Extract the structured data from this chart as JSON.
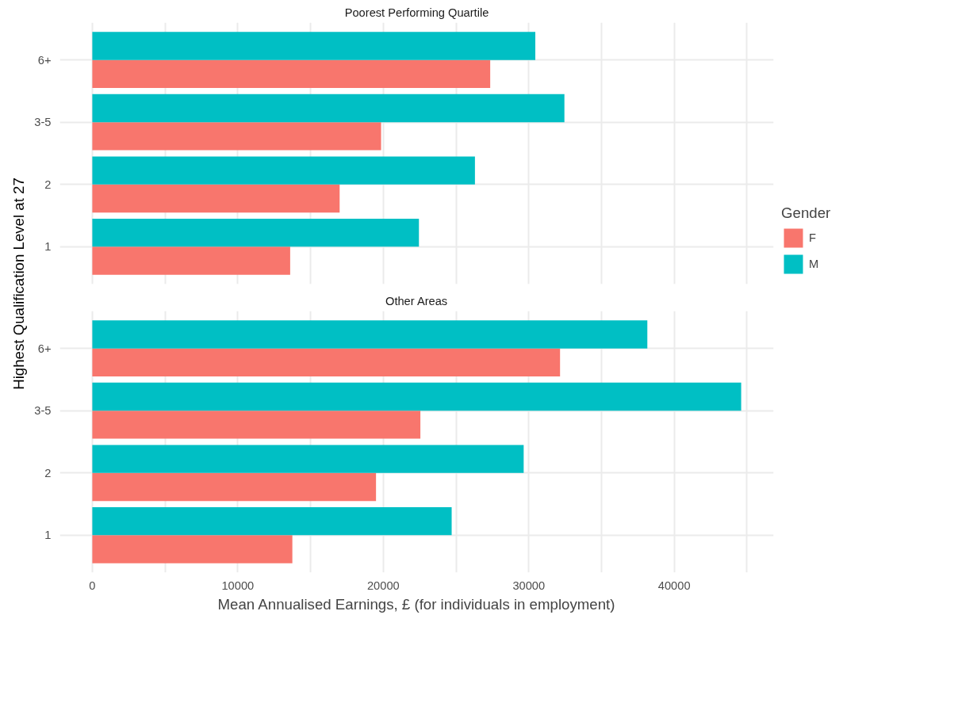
{
  "chart_data": [
    {
      "type": "bar",
      "orientation": "horizontal",
      "title": "Poorest Performing Quartile",
      "ylabel": "Highest Qualification Level at 27",
      "legend_title": "Gender",
      "legend": "right",
      "grid": true,
      "tick_labels": "y",
      "categories": [
        "6+",
        "3-5",
        "2",
        "1"
      ],
      "xlim": [
        -2230,
        46830
      ],
      "xticks": [
        0,
        {
          "value": 5000,
          "label": null
        },
        10000,
        {
          "value": 15000,
          "label": null
        },
        20000,
        {
          "value": 25000,
          "label": null
        },
        30000,
        {
          "value": 35000,
          "label": null
        },
        40000,
        {
          "value": 45000,
          "label": null
        }
      ],
      "series": [
        {
          "name": "F",
          "color": "#f8766d",
          "values": [
            27350,
            19850,
            17000,
            13600
          ]
        },
        {
          "name": "M",
          "color": "#00bfc4",
          "values": [
            30450,
            32450,
            26300,
            22450
          ]
        }
      ]
    },
    {
      "type": "bar",
      "orientation": "horizontal",
      "title": "Other Areas",
      "xlabel": "Mean Annualised Earnings, £ (for individuals in employment)",
      "grid": true,
      "categories": [
        "6+",
        "3-5",
        "2",
        "1"
      ],
      "xlim": [
        -2230,
        46830
      ],
      "xticks": [
        0,
        {
          "value": 5000,
          "label": null
        },
        10000,
        {
          "value": 15000,
          "label": null
        },
        20000,
        {
          "value": 25000,
          "label": null
        },
        30000,
        {
          "value": 35000,
          "label": null
        },
        40000,
        {
          "value": 45000,
          "label": null
        }
      ],
      "series": [
        {
          "color": "#f8766d",
          "values": [
            32150,
            22550,
            19500,
            13750
          ]
        },
        {
          "color": "#00bfc4",
          "values": [
            38150,
            44600,
            29650,
            24700
          ]
        }
      ]
    }
  ]
}
